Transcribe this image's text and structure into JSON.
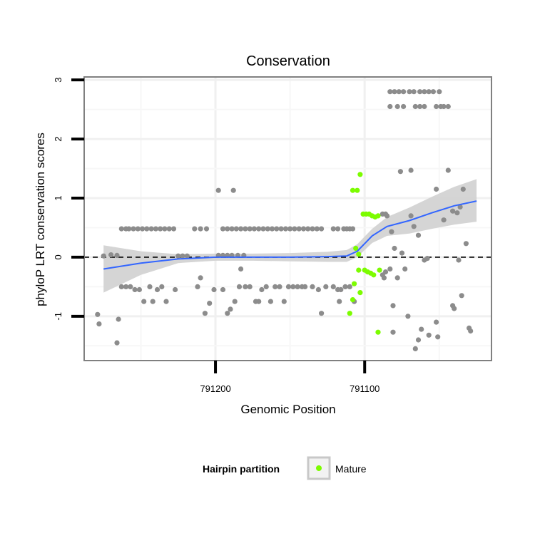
{
  "colors": {
    "panel_border": "#808080",
    "grid_major": "#f0f0f0",
    "grid_minor": "#f7f7f7",
    "point_other": "#8c8c8c",
    "point_mature": "#7cfc00",
    "smooth_line": "#3366ff",
    "smooth_band": "#d0d0d0",
    "reference_line": "#000000"
  },
  "chart_data": {
    "type": "scatter",
    "title": "Conservation",
    "xlabel": "Genomic Position",
    "ylabel": "phyloP LRT conservation scores",
    "x_reversed": true,
    "xlim": [
      791288,
      791015
    ],
    "ylim": [
      -1.75,
      3.05
    ],
    "x_ticks": [
      791200,
      791100
    ],
    "y_ticks": [
      -1,
      0,
      1,
      2,
      3
    ],
    "x_tick_labels": [
      "791200",
      "791100"
    ],
    "y_tick_labels": [
      "-1",
      "0",
      "1",
      "2",
      "3"
    ],
    "grid": true,
    "reference_line_y": 0,
    "legend": {
      "title": "Hairpin partition",
      "position": "bottom",
      "entries": [
        {
          "label": "Mature",
          "color": "#7cfc00"
        }
      ]
    },
    "series": [
      {
        "name": "Mature",
        "color": "#7cfc00",
        "points": [
          [
            791108,
            1.13
          ],
          [
            791105,
            1.13
          ],
          [
            791103,
            1.4
          ],
          [
            791106,
            0.15
          ],
          [
            791104,
            0.05
          ],
          [
            791101,
            0.73
          ],
          [
            791099,
            0.73
          ],
          [
            791097,
            0.73
          ],
          [
            791095,
            0.7
          ],
          [
            791093,
            0.68
          ],
          [
            791091,
            0.7
          ],
          [
            791104,
            -0.22
          ],
          [
            791100,
            -0.22
          ],
          [
            791098,
            -0.25
          ],
          [
            791096,
            -0.27
          ],
          [
            791094,
            -0.3
          ],
          [
            791090,
            -0.22
          ],
          [
            791107,
            -0.45
          ],
          [
            791103,
            -0.6
          ],
          [
            791108,
            -0.72
          ],
          [
            791110,
            -0.95
          ],
          [
            791091,
            -1.27
          ]
        ]
      },
      {
        "color": "#8c8c8c",
        "points": [
          [
            791279,
            -0.97
          ],
          [
            791278,
            -1.13
          ],
          [
            791275,
            0.02
          ],
          [
            791270,
            0.04
          ],
          [
            791266,
            0.03
          ],
          [
            791265,
            -1.05
          ],
          [
            791266,
            -1.45
          ],
          [
            791263,
            0.48
          ],
          [
            791260,
            0.48
          ],
          [
            791258,
            0.48
          ],
          [
            791255,
            0.48
          ],
          [
            791252,
            0.48
          ],
          [
            791249,
            0.48
          ],
          [
            791246,
            0.48
          ],
          [
            791243,
            0.48
          ],
          [
            791240,
            0.48
          ],
          [
            791237,
            0.48
          ],
          [
            791234,
            0.48
          ],
          [
            791231,
            0.48
          ],
          [
            791228,
            0.48
          ],
          [
            791225,
            0.02
          ],
          [
            791222,
            0.02
          ],
          [
            791219,
            0.02
          ],
          [
            791263,
            -0.5
          ],
          [
            791260,
            -0.5
          ],
          [
            791257,
            -0.5
          ],
          [
            791254,
            -0.55
          ],
          [
            791251,
            -0.55
          ],
          [
            791248,
            -0.75
          ],
          [
            791244,
            -0.5
          ],
          [
            791242,
            -0.75
          ],
          [
            791239,
            -0.55
          ],
          [
            791236,
            -0.5
          ],
          [
            791233,
            -0.75
          ],
          [
            791227,
            -0.55
          ],
          [
            791214,
            0.48
          ],
          [
            791210,
            0.48
          ],
          [
            791206,
            0.48
          ],
          [
            791212,
            -0.5
          ],
          [
            791210,
            -0.35
          ],
          [
            791204,
            -0.78
          ],
          [
            791207,
            -0.95
          ],
          [
            791201,
            -0.55
          ],
          [
            791198,
            0.03
          ],
          [
            791195,
            0.03
          ],
          [
            791192,
            0.03
          ],
          [
            791189,
            0.03
          ],
          [
            791185,
            0.03
          ],
          [
            791181,
            0.03
          ],
          [
            791198,
            1.13
          ],
          [
            791188,
            1.13
          ],
          [
            791195,
            -0.55
          ],
          [
            791192,
            -0.95
          ],
          [
            791190,
            -0.88
          ],
          [
            791187,
            -0.75
          ],
          [
            791183,
            -0.2
          ],
          [
            791184,
            -0.5
          ],
          [
            791195,
            0.48
          ],
          [
            791192,
            0.48
          ],
          [
            791189,
            0.48
          ],
          [
            791186,
            0.48
          ],
          [
            791183,
            0.48
          ],
          [
            791180,
            0.48
          ],
          [
            791177,
            0.48
          ],
          [
            791174,
            0.48
          ],
          [
            791171,
            0.48
          ],
          [
            791168,
            0.48
          ],
          [
            791165,
            0.48
          ],
          [
            791162,
            0.48
          ],
          [
            791159,
            0.48
          ],
          [
            791156,
            0.48
          ],
          [
            791153,
            0.48
          ],
          [
            791150,
            0.48
          ],
          [
            791147,
            0.48
          ],
          [
            791144,
            0.48
          ],
          [
            791141,
            0.48
          ],
          [
            791138,
            0.48
          ],
          [
            791135,
            0.48
          ],
          [
            791132,
            0.48
          ],
          [
            791129,
            0.48
          ],
          [
            791180,
            -0.5
          ],
          [
            791177,
            -0.5
          ],
          [
            791173,
            -0.75
          ],
          [
            791171,
            -0.75
          ],
          [
            791169,
            -0.55
          ],
          [
            791166,
            -0.5
          ],
          [
            791163,
            -0.75
          ],
          [
            791160,
            -0.5
          ],
          [
            791157,
            -0.5
          ],
          [
            791154,
            -0.75
          ],
          [
            791151,
            -0.5
          ],
          [
            791148,
            -0.5
          ],
          [
            791145,
            -0.5
          ],
          [
            791142,
            -0.5
          ],
          [
            791140,
            -0.5
          ],
          [
            791135,
            -0.5
          ],
          [
            791131,
            -0.55
          ],
          [
            791129,
            -0.95
          ],
          [
            791126,
            -0.5
          ],
          [
            791121,
            -0.5
          ],
          [
            791118,
            -0.55
          ],
          [
            791117,
            -0.75
          ],
          [
            791116,
            -0.55
          ],
          [
            791113,
            -0.5
          ],
          [
            791110,
            -0.5
          ],
          [
            791107,
            -0.75
          ],
          [
            791121,
            0.48
          ],
          [
            791118,
            0.48
          ],
          [
            791114,
            0.48
          ],
          [
            791112,
            0.48
          ],
          [
            791110,
            0.48
          ],
          [
            791108,
            0.48
          ],
          [
            791088,
            0.73
          ],
          [
            791086,
            0.73
          ],
          [
            791085,
            0.7
          ],
          [
            791088,
            -0.3
          ],
          [
            791086,
            -0.25
          ],
          [
            791083,
            -0.2
          ],
          [
            791087,
            -0.35
          ],
          [
            791082,
            0.43
          ],
          [
            791080,
            0.15
          ],
          [
            791081,
            -0.82
          ],
          [
            791078,
            -0.35
          ],
          [
            791075,
            0.07
          ],
          [
            791073,
            -0.2
          ],
          [
            791071,
            -1.0
          ],
          [
            791067,
            0.52
          ],
          [
            791064,
            0.37
          ],
          [
            791081,
            -1.27
          ],
          [
            791069,
            0.7
          ],
          [
            791076,
            1.45
          ],
          [
            791069,
            1.47
          ],
          [
            791060,
            -0.05
          ],
          [
            791058,
            -0.02
          ],
          [
            791064,
            -1.4
          ],
          [
            791057,
            -1.32
          ],
          [
            791052,
            1.15
          ],
          [
            791044,
            1.47
          ],
          [
            791047,
            0.63
          ],
          [
            791041,
            0.78
          ],
          [
            791038,
            0.75
          ],
          [
            791036,
            0.85
          ],
          [
            791041,
            -0.82
          ],
          [
            791040,
            -0.87
          ],
          [
            791037,
            -0.05
          ],
          [
            791034,
            1.15
          ],
          [
            791035,
            -0.65
          ],
          [
            791030,
            -1.2
          ],
          [
            791029,
            -1.25
          ],
          [
            791032,
            0.23
          ],
          [
            791066,
            -1.55
          ],
          [
            791062,
            -1.22
          ],
          [
            791051,
            -1.35
          ],
          [
            791052,
            -1.1
          ],
          [
            791083,
            2.8
          ],
          [
            791080,
            2.8
          ],
          [
            791077,
            2.8
          ],
          [
            791074,
            2.8
          ],
          [
            791070,
            2.8
          ],
          [
            791067,
            2.8
          ],
          [
            791063,
            2.8
          ],
          [
            791060,
            2.8
          ],
          [
            791057,
            2.8
          ],
          [
            791054,
            2.8
          ],
          [
            791050,
            2.8
          ],
          [
            791083,
            2.55
          ],
          [
            791078,
            2.55
          ],
          [
            791074,
            2.55
          ],
          [
            791066,
            2.55
          ],
          [
            791063,
            2.55
          ],
          [
            791060,
            2.55
          ],
          [
            791052,
            2.55
          ],
          [
            791049,
            2.55
          ],
          [
            791047,
            2.55
          ],
          [
            791044,
            2.55
          ]
        ]
      }
    ],
    "smooth": {
      "x": [
        791275,
        791250,
        791225,
        791200,
        791175,
        791150,
        791125,
        791112,
        791105,
        791095,
        791085,
        791070,
        791055,
        791040,
        791025
      ],
      "y": [
        -0.2,
        -0.1,
        -0.03,
        0.0,
        0.0,
        0.0,
        0.01,
        0.02,
        0.1,
        0.36,
        0.52,
        0.62,
        0.75,
        0.87,
        0.95
      ],
      "lower": [
        -0.6,
        -0.3,
        -0.1,
        -0.06,
        -0.06,
        -0.07,
        -0.08,
        -0.08,
        0.0,
        0.24,
        0.36,
        0.4,
        0.48,
        0.55,
        0.6
      ],
      "upper": [
        0.2,
        0.1,
        0.05,
        0.06,
        0.06,
        0.07,
        0.09,
        0.12,
        0.22,
        0.48,
        0.68,
        0.84,
        1.02,
        1.19,
        1.32
      ]
    }
  }
}
